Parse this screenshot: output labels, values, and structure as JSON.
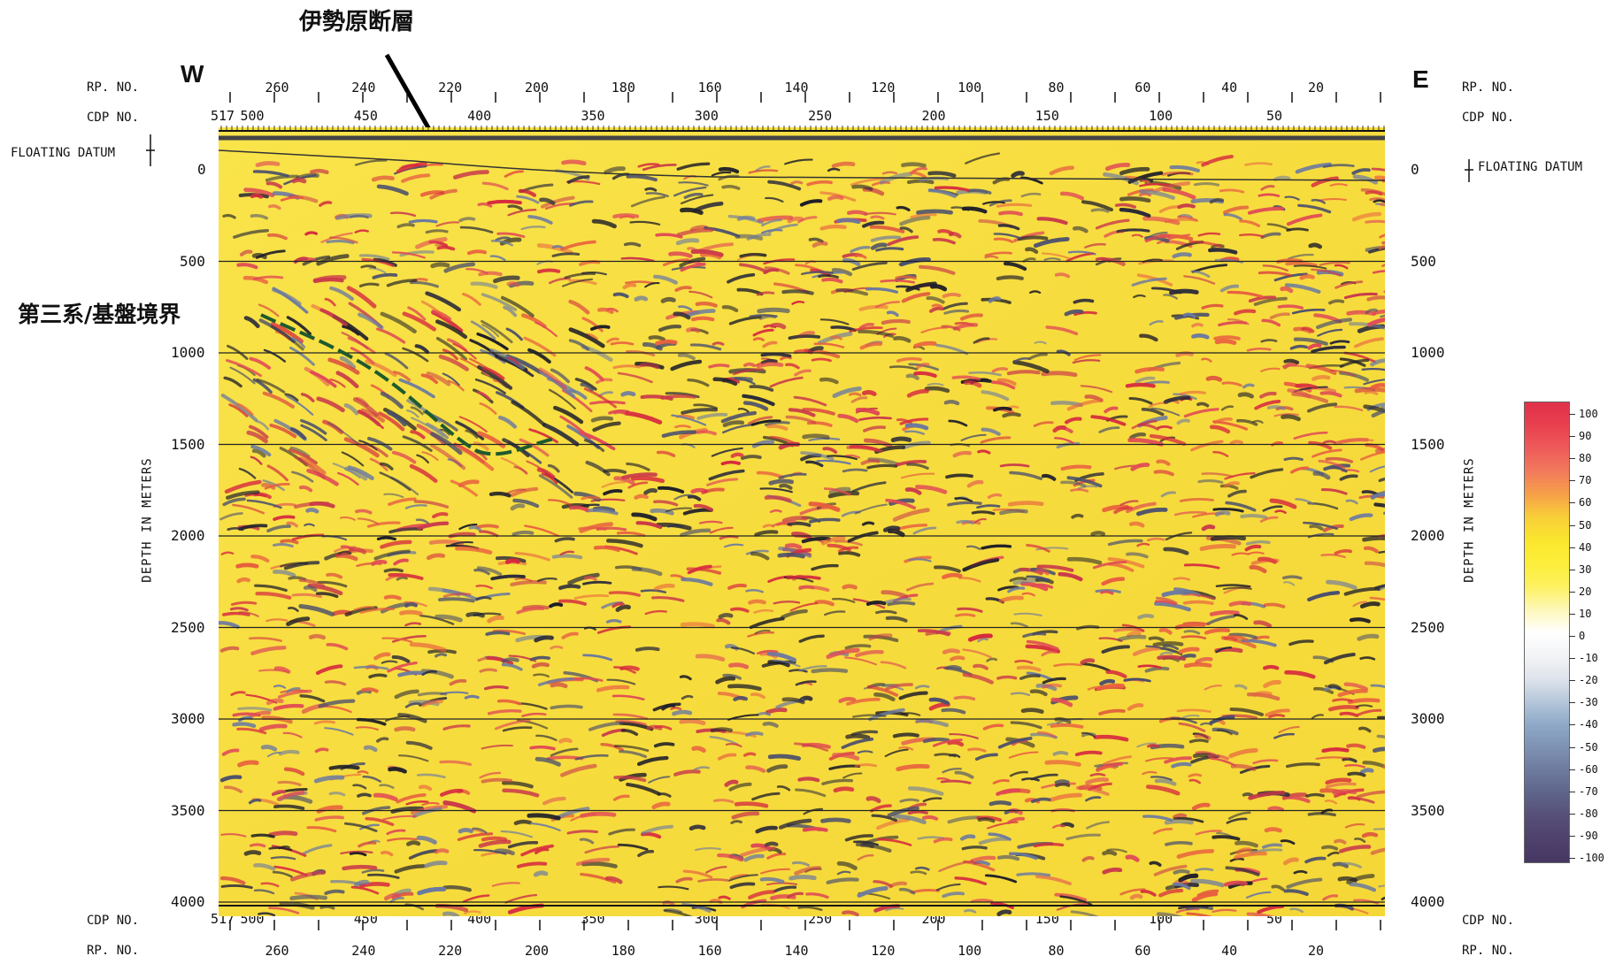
{
  "title": "伊勢原断層",
  "boundary_label": "第三系/基盤境界",
  "west_label": "W",
  "east_label": "E",
  "rp_label": "RP. NO.",
  "cdp_label": "CDP NO.",
  "floating_datum_label": "FLOATING DATUM",
  "depth_axis_label": "DEPTH IN METERS",
  "cdp_start": "517",
  "rp_ticks": [
    "260",
    "240",
    "220",
    "200",
    "180",
    "160",
    "140",
    "120",
    "100",
    "80",
    "60",
    "40",
    "20"
  ],
  "cdp_ticks": [
    "500",
    "450",
    "400",
    "350",
    "300",
    "250",
    "200",
    "150",
    "100",
    "50"
  ],
  "depth_ticks": [
    "0",
    "500",
    "1000",
    "1500",
    "2000",
    "2500",
    "3000",
    "3500",
    "4000"
  ],
  "colorbar": {
    "labels": [
      "100",
      "90",
      "80",
      "70",
      "60",
      "50",
      "40",
      "30",
      "20",
      "10",
      "0",
      "-10",
      "-20",
      "-30",
      "-40",
      "-50",
      "-60",
      "-70",
      "-80",
      "-90",
      "-100"
    ],
    "colors": [
      "#e0304a",
      "#e8404f",
      "#ee5a5a",
      "#f27a5c",
      "#f6a048",
      "#f8cf38",
      "#fbe62e",
      "#fcee3a",
      "#fdf160",
      "#fdf7b8",
      "#ffffff",
      "#f3f4f6",
      "#dfe4ec",
      "#b6c7da",
      "#8fa9c8",
      "#7e92b4",
      "#6d7a9e",
      "#5e6489",
      "#574f78",
      "#4e416b",
      "#463663"
    ]
  }
}
